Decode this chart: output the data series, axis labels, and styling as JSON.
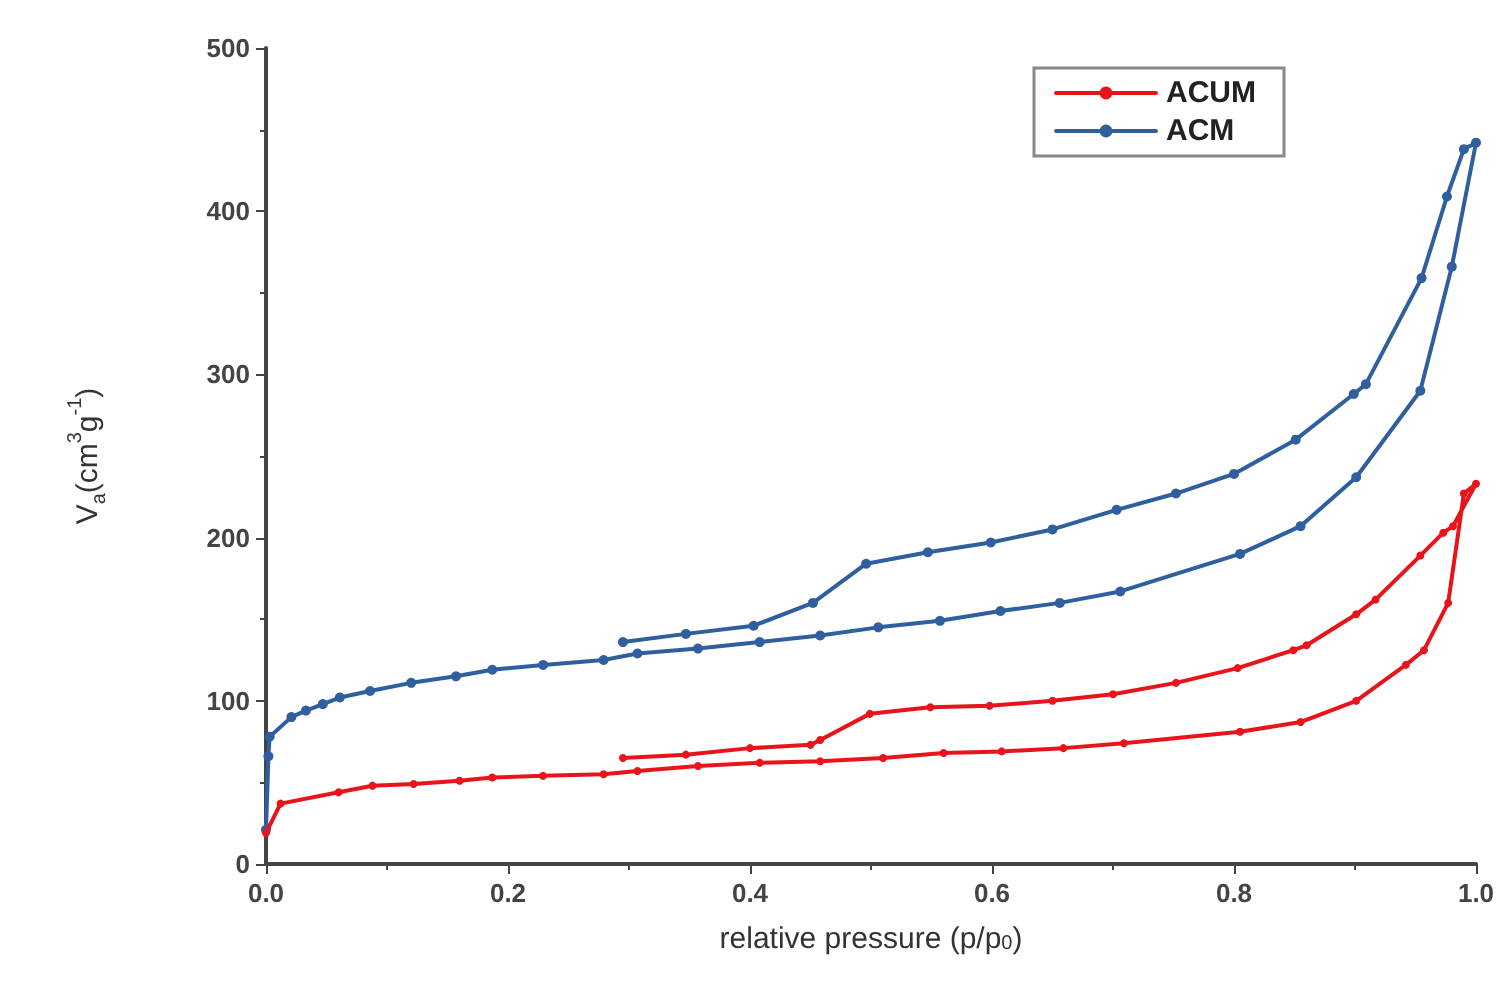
{
  "chart_data": {
    "type": "line",
    "xlabel": "relative pressure (p/p$_{0}$)",
    "ylabel": "V$_{a}$(cm$^{3}$g$^{-1}$)",
    "xlim": [
      0,
      1.0
    ],
    "xticks": [
      {
        "value": 0,
        "label": "0.0"
      },
      0.2,
      0.4,
      0.6,
      0.8,
      {
        "value": 1,
        "label": "1.0"
      }
    ],
    "ylim": [
      0,
      500
    ],
    "yticks": [
      0,
      100,
      200,
      300,
      400,
      500
    ],
    "grid": false,
    "legend": "top right",
    "marker": "circle",
    "line_style": "solid",
    "series": [
      {
        "name": "ACUM",
        "color": "#e8141b",
        "x": [
          0,
          0.012,
          0.06,
          0.088,
          0.122,
          0.16,
          0.187,
          0.229,
          0.279,
          0.307,
          0.357,
          0.408,
          0.458,
          0.51,
          0.56,
          0.608,
          0.659,
          0.709,
          0.805,
          0.855,
          0.901,
          0.942,
          0.957,
          0.977,
          0.99,
          1.0,
          0.981,
          0.973,
          0.954,
          0.917,
          0.901,
          0.86,
          0.849,
          0.803,
          0.752,
          0.7,
          0.65,
          0.598,
          0.549,
          0.499,
          0.458,
          0.45,
          0.4,
          0.347,
          0.295
        ],
        "values": [
          19,
          37,
          44,
          48,
          49,
          51,
          53,
          54,
          55,
          57,
          60,
          62,
          63,
          65,
          68,
          69,
          71,
          74,
          81,
          87,
          100,
          122,
          131,
          160,
          227,
          233,
          207,
          203,
          189,
          162,
          153,
          134,
          131,
          120,
          111,
          104,
          100,
          97,
          96,
          92,
          76,
          73,
          71,
          67,
          65
        ]
      },
      {
        "name": "ACM",
        "color": "#2f5f9e",
        "x": [
          0,
          0.002,
          0.003,
          0.021,
          0.033,
          0.047,
          0.061,
          0.086,
          0.12,
          0.157,
          0.187,
          0.229,
          0.279,
          0.307,
          0.357,
          0.408,
          0.458,
          0.506,
          0.557,
          0.607,
          0.656,
          0.706,
          0.805,
          0.855,
          0.901,
          0.954,
          0.98,
          1.0,
          0.99,
          0.976,
          0.955,
          0.909,
          0.899,
          0.851,
          0.8,
          0.752,
          0.703,
          0.65,
          0.599,
          0.547,
          0.496,
          0.452,
          0.403,
          0.347,
          0.295
        ],
        "values": [
          21,
          66,
          78,
          90,
          94,
          98,
          102,
          106,
          111,
          115,
          119,
          122,
          125,
          129,
          132,
          136,
          140,
          145,
          149,
          155,
          160,
          167,
          190,
          207,
          237,
          290,
          366,
          442,
          438,
          409,
          359,
          294,
          288,
          260,
          239,
          227,
          217,
          205,
          197,
          191,
          184,
          160,
          146,
          141,
          136
        ]
      }
    ]
  }
}
